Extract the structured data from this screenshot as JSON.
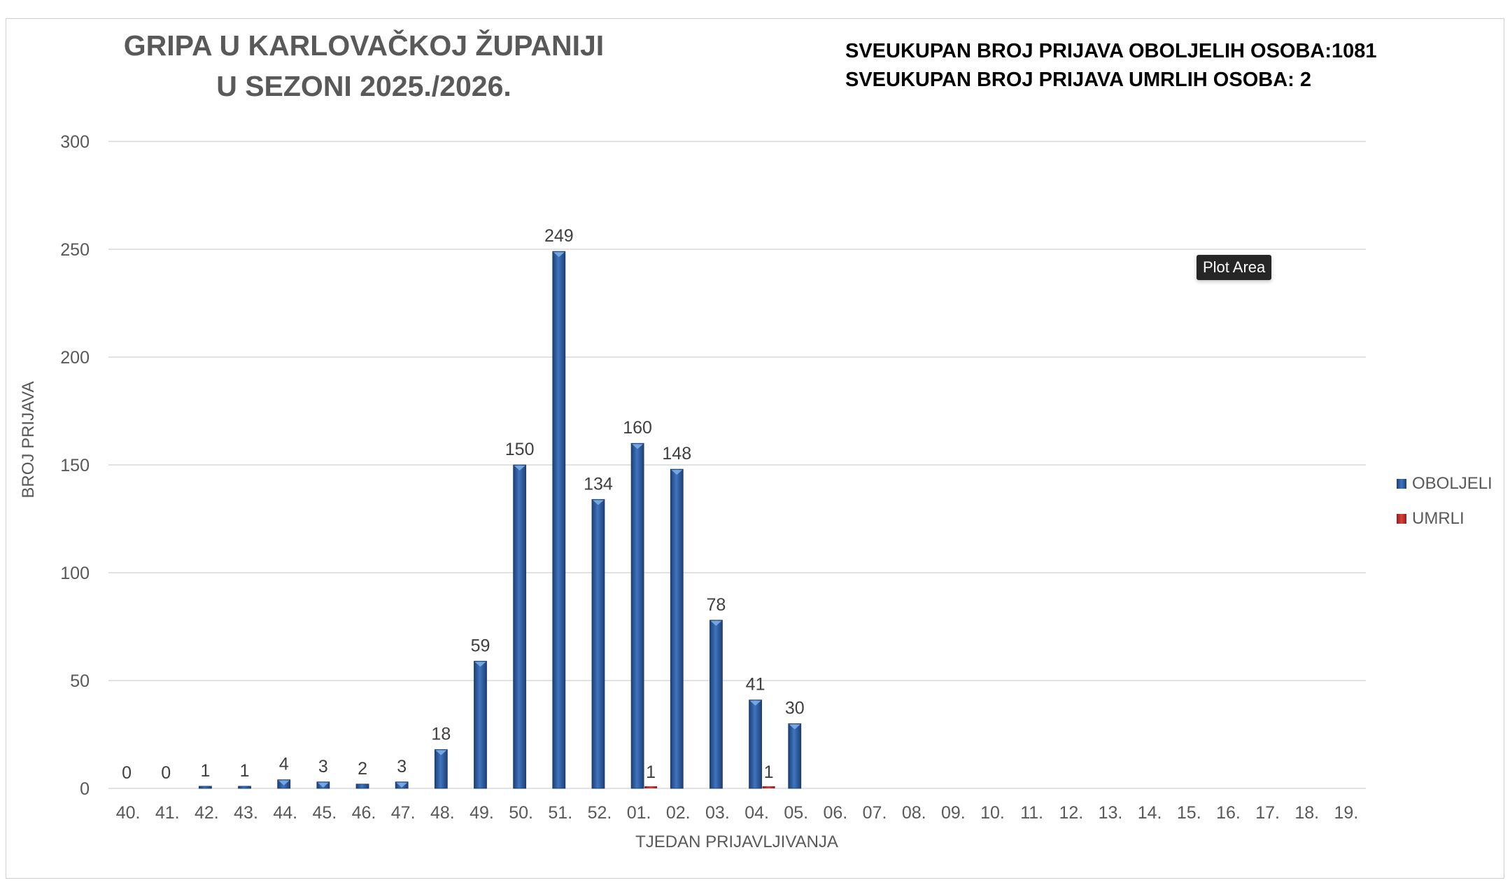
{
  "title_lines": [
    "GRIPA U KARLOVAČKOJ ŽUPANIJI",
    "U SEZONI 2025./2026."
  ],
  "totals": {
    "line1": "SVEUKUPAN BROJ PRIJAVA OBOLJELIH OSOBA:1081",
    "line2": "SVEUKUPAN BROJ PRIJAVA UMRLIH OSOBA: 2"
  },
  "tooltip": "Plot Area",
  "colors": {
    "oboljeli": "#2f5f9e",
    "umrli": "#c0392b",
    "grid": "#d9d9d9",
    "axis_text": "#595959"
  },
  "chart_data": {
    "type": "bar",
    "xlabel": "TJEDAN PRIJAVLJIVANJA",
    "ylabel": "BROJ PRIJAVA",
    "ylim": [
      0,
      300
    ],
    "yticks": [
      0,
      50,
      100,
      150,
      200,
      250,
      300
    ],
    "grid": true,
    "legend_position": "right",
    "categories": [
      "40.",
      "41.",
      "42.",
      "43.",
      "44.",
      "45.",
      "46.",
      "47.",
      "48.",
      "49.",
      "50.",
      "51.",
      "52.",
      "01.",
      "02.",
      "03.",
      "04.",
      "05.",
      "06.",
      "07.",
      "08.",
      "09.",
      "10.",
      "11.",
      "12.",
      "13.",
      "14.",
      "15.",
      "16.",
      "17.",
      "18.",
      "19."
    ],
    "series": [
      {
        "name": "OBOLJELI",
        "values": [
          0,
          0,
          1,
          1,
          4,
          3,
          2,
          3,
          18,
          59,
          150,
          249,
          134,
          160,
          148,
          78,
          41,
          30,
          null,
          null,
          null,
          null,
          null,
          null,
          null,
          null,
          null,
          null,
          null,
          null,
          null,
          null
        ]
      },
      {
        "name": "UMRLI",
        "values": [
          null,
          null,
          null,
          null,
          null,
          null,
          null,
          null,
          null,
          null,
          null,
          null,
          null,
          1,
          null,
          null,
          1,
          null,
          null,
          null,
          null,
          null,
          null,
          null,
          null,
          null,
          null,
          null,
          null,
          null,
          null,
          null
        ]
      }
    ]
  }
}
